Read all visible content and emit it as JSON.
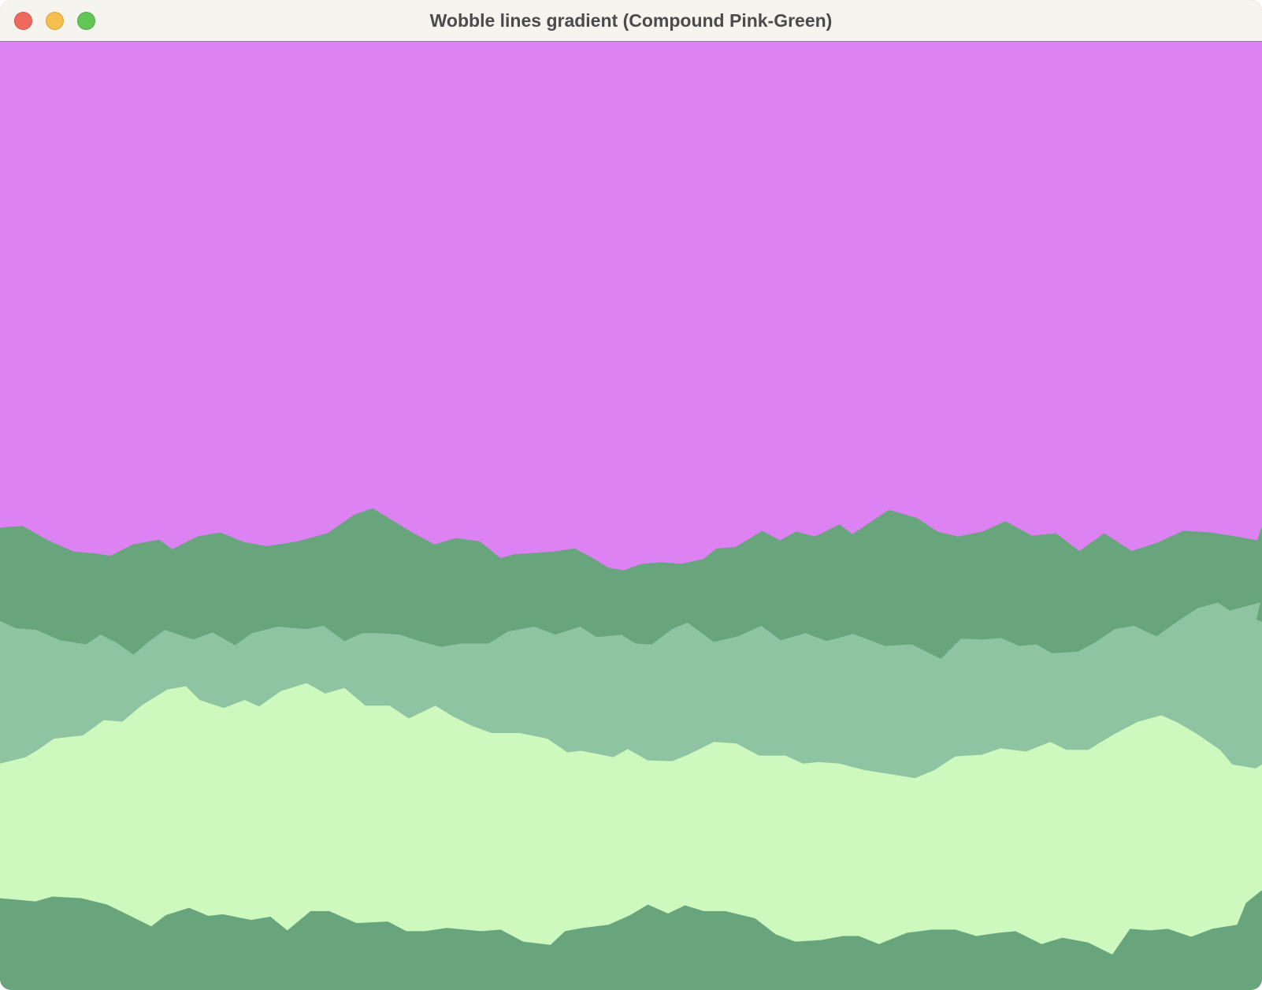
{
  "window": {
    "title": "Wobble lines gradient (Compound Pink-Green)"
  },
  "colors": {
    "background": "#dc82f2",
    "band_dark_green": "#68a57d",
    "band_mid_green": "#8ec4a1",
    "band_pale_green": "#cdf8be",
    "band_bottom_green": "#68a57d"
  }
}
